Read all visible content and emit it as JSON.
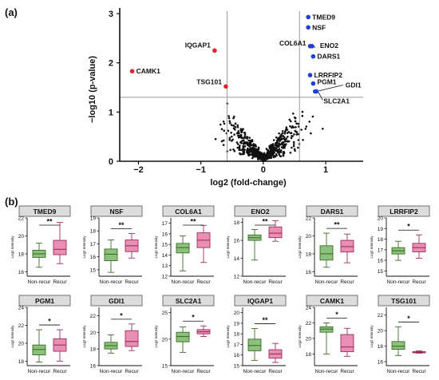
{
  "panels": {
    "a": "(a)",
    "b": "(b)"
  },
  "colors": {
    "sig_down": "#e0242b",
    "sig_up": "#1f3fd6",
    "ns_points": "#111111",
    "nonrecur_fill": "#8bc17a",
    "nonrecur_edge": "#3d6b2a",
    "recur_fill": "#e88fb3",
    "recur_edge": "#9b2f60",
    "threshold_line": "#9a9a9a",
    "title_bar": "#dcdcdc"
  },
  "chart_data": [
    {
      "type": "scatter",
      "subtype": "volcano",
      "title": "",
      "xlabel": "log2 (fold-change)",
      "ylabel": "−log10 (p-value)",
      "xlim": [
        -2.3,
        1.6
      ],
      "ylim": [
        0,
        3.05
      ],
      "x_ticks": [
        -2,
        -1,
        0,
        1
      ],
      "y_ticks": [
        0,
        1,
        2,
        3
      ],
      "thresholds": {
        "x": [
          -0.58,
          0.58
        ],
        "y": 1.3
      },
      "grid": false,
      "legend": "none",
      "labeled_points": [
        {
          "label": "CAMK1",
          "x": -2.1,
          "y": 1.83,
          "dir": "down"
        },
        {
          "label": "IQGAP1",
          "x": -0.78,
          "y": 2.25,
          "dir": "down"
        },
        {
          "label": "TSG101",
          "x": -0.6,
          "y": 1.52,
          "dir": "down"
        },
        {
          "label": "TMED9",
          "x": 0.72,
          "y": 2.93,
          "dir": "up"
        },
        {
          "label": "NSF",
          "x": 0.72,
          "y": 2.72,
          "dir": "up"
        },
        {
          "label": "COL6A1",
          "x": 0.75,
          "y": 2.34,
          "dir": "up"
        },
        {
          "label": "ENO2",
          "x": 0.78,
          "y": 2.34,
          "dir": "up"
        },
        {
          "label": "DARS1",
          "x": 0.8,
          "y": 2.13,
          "dir": "up"
        },
        {
          "label": "LRRFIP2",
          "x": 0.75,
          "y": 1.75,
          "dir": "up"
        },
        {
          "label": "PGM1",
          "x": 0.8,
          "y": 1.58,
          "dir": "up"
        },
        {
          "label": "GDI1",
          "x": 0.83,
          "y": 1.42,
          "dir": "up"
        },
        {
          "label": "SLC2A1",
          "x": 0.85,
          "y": 1.42,
          "dir": "up"
        }
      ]
    },
    {
      "type": "box",
      "ylabel": "Log2 Intensity",
      "categories": [
        "Non-recur",
        "Recur"
      ],
      "panels": [
        {
          "title": "TMED9",
          "sig": "**",
          "ylim": [
            15.5,
            22
          ],
          "ticks": [
            16,
            18,
            20,
            22
          ],
          "boxes": [
            {
              "min": 16.5,
              "q1": 17.6,
              "median": 18.0,
              "q3": 18.4,
              "max": 19.2
            },
            {
              "min": 16.9,
              "q1": 17.9,
              "median": 18.5,
              "q3": 19.5,
              "max": 21.5
            }
          ]
        },
        {
          "title": "NSF",
          "sig": "**",
          "ylim": [
            14.5,
            19
          ],
          "ticks": [
            15,
            16,
            17,
            18,
            19
          ],
          "boxes": [
            {
              "min": 14.8,
              "q1": 15.7,
              "median": 16.2,
              "q3": 16.6,
              "max": 17.3
            },
            {
              "min": 15.9,
              "q1": 16.4,
              "median": 16.85,
              "q3": 17.3,
              "max": 17.8
            }
          ]
        },
        {
          "title": "COL6A1",
          "sig": "**",
          "ylim": [
            12,
            17.5
          ],
          "ticks": [
            12,
            13,
            14,
            15,
            16,
            17
          ],
          "boxes": [
            {
              "min": 12.5,
              "q1": 14.2,
              "median": 14.7,
              "q3": 15.1,
              "max": 15.8
            },
            {
              "min": 13.3,
              "q1": 14.7,
              "median": 15.4,
              "q3": 16.1,
              "max": 16.8
            }
          ]
        },
        {
          "title": "ENO2",
          "sig": "**",
          "ylim": [
            12,
            18.5
          ],
          "ticks": [
            12,
            14,
            16,
            18
          ],
          "boxes": [
            {
              "min": 13.8,
              "q1": 16.0,
              "median": 16.3,
              "q3": 16.6,
              "max": 17.2
            },
            {
              "min": 15.9,
              "q1": 16.3,
              "median": 16.8,
              "q3": 17.5,
              "max": 18.2
            }
          ]
        },
        {
          "title": "DARS1",
          "sig": "**",
          "ylim": [
            15.5,
            22
          ],
          "ticks": [
            16,
            18,
            20,
            22
          ],
          "boxes": [
            {
              "min": 16.5,
              "q1": 17.3,
              "median": 18.0,
              "q3": 18.9,
              "max": 20.3
            },
            {
              "min": 17.0,
              "q1": 18.2,
              "median": 18.8,
              "q3": 19.5,
              "max": 20.2
            }
          ]
        },
        {
          "title": "LRRFIP2",
          "sig": "*",
          "ylim": [
            14.5,
            20
          ],
          "ticks": [
            15,
            16,
            17,
            18,
            19,
            20
          ],
          "boxes": [
            {
              "min": 16.0,
              "q1": 16.6,
              "median": 16.9,
              "q3": 17.2,
              "max": 17.8
            },
            {
              "min": 16.2,
              "q1": 16.8,
              "median": 17.2,
              "q3": 17.6,
              "max": 18.4
            }
          ]
        },
        {
          "title": "PGM1",
          "sig": "*",
          "ylim": [
            17.5,
            24
          ],
          "ticks": [
            18,
            20,
            22,
            24
          ],
          "boxes": [
            {
              "min": 17.9,
              "q1": 18.7,
              "median": 19.3,
              "q3": 19.8,
              "max": 21.5
            },
            {
              "min": 18.0,
              "q1": 19.1,
              "median": 19.8,
              "q3": 20.5,
              "max": 21.5
            }
          ]
        },
        {
          "title": "GDI1",
          "sig": "*",
          "ylim": [
            16,
            23
          ],
          "ticks": [
            16,
            18,
            20,
            22
          ],
          "boxes": [
            {
              "min": 17.5,
              "q1": 18.0,
              "median": 18.4,
              "q3": 18.8,
              "max": 19.7
            },
            {
              "min": 17.8,
              "q1": 18.3,
              "median": 18.9,
              "q3": 20.2,
              "max": 21.0
            }
          ]
        },
        {
          "title": "SLC2A1",
          "sig": "*",
          "ylim": [
            15,
            26
          ],
          "ticks": [
            15,
            20,
            25
          ],
          "boxes": [
            {
              "min": 17.5,
              "q1": 19.5,
              "median": 20.5,
              "q3": 21.3,
              "max": 22.3
            },
            {
              "min": 20.5,
              "q1": 21.0,
              "median": 21.4,
              "q3": 21.8,
              "max": 22.5
            }
          ]
        },
        {
          "title": "IQGAP1",
          "sig": "**",
          "ylim": [
            15,
            20.5
          ],
          "ticks": [
            15,
            16,
            17,
            18,
            19,
            20
          ],
          "boxes": [
            {
              "min": 15.5,
              "q1": 16.4,
              "median": 16.9,
              "q3": 17.5,
              "max": 18.5
            },
            {
              "min": 15.3,
              "q1": 15.7,
              "median": 16.1,
              "q3": 16.5,
              "max": 17.1
            }
          ]
        },
        {
          "title": "CAMK1",
          "sig": "*",
          "ylim": [
            16.5,
            24
          ],
          "ticks": [
            18,
            20,
            22,
            24
          ],
          "boxes": [
            {
              "min": 18.0,
              "q1": 20.8,
              "median": 21.2,
              "q3": 21.5,
              "max": 22.0
            },
            {
              "min": 17.7,
              "q1": 18.3,
              "median": 18.9,
              "q3": 20.5,
              "max": 21.3
            }
          ]
        },
        {
          "title": "TSG101",
          "sig": "*",
          "ylim": [
            15.5,
            23
          ],
          "ticks": [
            16,
            18,
            20,
            22
          ],
          "boxes": [
            {
              "min": 16.8,
              "q1": 17.6,
              "median": 18.0,
              "q3": 18.6,
              "max": 20.5
            },
            {
              "min": 17.1,
              "q1": 17.15,
              "median": 17.2,
              "q3": 17.3,
              "max": 17.4
            }
          ]
        }
      ]
    }
  ]
}
